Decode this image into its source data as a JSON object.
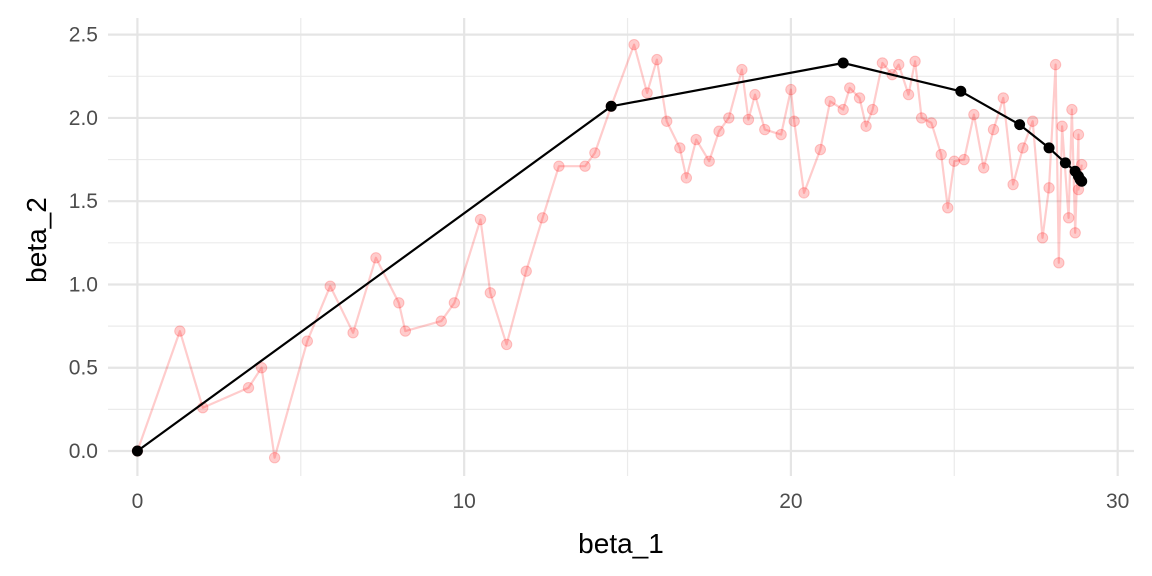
{
  "chart_data": {
    "type": "scatter",
    "title": "",
    "xlabel": "beta_1",
    "ylabel": "beta_2",
    "xlim": [
      -0.9,
      30.5
    ],
    "ylim": [
      -0.15,
      2.6
    ],
    "x_ticks": [
      0,
      10,
      20,
      30
    ],
    "y_ticks": [
      0.0,
      0.5,
      1.0,
      1.5,
      2.0,
      2.5
    ],
    "x_tick_labels": [
      "0",
      "10",
      "20",
      "30"
    ],
    "y_tick_labels": [
      "0.0",
      "0.5",
      "1.0",
      "1.5",
      "2.0",
      "2.5"
    ],
    "grid": true,
    "legend": "none",
    "series": [
      {
        "color": "#FF0000",
        "opacity": 0.2,
        "style": "line+points",
        "x": [
          0,
          1.3,
          2.0,
          3.4,
          3.8,
          4.2,
          5.2,
          5.9,
          6.6,
          7.3,
          8.0,
          8.2,
          9.3,
          9.7,
          10.5,
          10.8,
          11.3,
          11.9,
          12.4,
          12.9,
          13.7,
          14.0,
          14.5,
          15.2,
          15.6,
          15.9,
          16.2,
          16.6,
          16.8,
          17.1,
          17.5,
          17.8,
          18.1,
          18.5,
          18.7,
          18.9,
          19.2,
          19.7,
          20.0,
          20.1,
          20.4,
          20.9,
          21.2,
          21.6,
          21.8,
          22.1,
          22.3,
          22.5,
          22.8,
          23.1,
          23.3,
          23.6,
          23.8,
          24.0,
          24.3,
          24.6,
          24.8,
          25.0,
          25.3,
          25.6,
          25.9,
          26.2,
          26.5,
          26.8,
          27.1,
          27.4,
          27.7,
          27.9,
          28.1,
          28.2,
          28.3,
          28.5,
          28.6,
          28.7,
          28.8,
          28.8,
          28.9
        ],
        "y": [
          0.0,
          0.72,
          0.26,
          0.38,
          0.5,
          -0.04,
          0.66,
          0.99,
          0.71,
          1.16,
          0.89,
          0.72,
          0.78,
          0.89,
          1.39,
          0.95,
          0.64,
          1.08,
          1.4,
          1.71,
          1.71,
          1.79,
          2.07,
          2.44,
          2.15,
          2.35,
          1.98,
          1.82,
          1.64,
          1.87,
          1.74,
          1.92,
          2.0,
          2.29,
          1.99,
          2.14,
          1.93,
          1.9,
          2.17,
          1.98,
          1.55,
          1.81,
          2.1,
          2.05,
          2.18,
          2.12,
          1.95,
          2.05,
          2.33,
          2.26,
          2.32,
          2.14,
          2.34,
          2.0,
          1.97,
          1.78,
          1.46,
          1.74,
          1.75,
          2.02,
          1.7,
          1.93,
          2.12,
          1.6,
          1.82,
          1.98,
          1.28,
          1.58,
          2.32,
          1.13,
          1.95,
          1.4,
          2.05,
          1.31,
          1.9,
          1.57,
          1.72
        ]
      },
      {
        "color": "#000000",
        "opacity": 1,
        "style": "line+points",
        "x": [
          0,
          14.5,
          21.6,
          25.2,
          27.0,
          27.9,
          28.4,
          28.7,
          28.8,
          28.85,
          28.9
        ],
        "y": [
          0.0,
          2.07,
          2.33,
          2.16,
          1.96,
          1.82,
          1.73,
          1.68,
          1.65,
          1.63,
          1.62
        ]
      }
    ]
  }
}
